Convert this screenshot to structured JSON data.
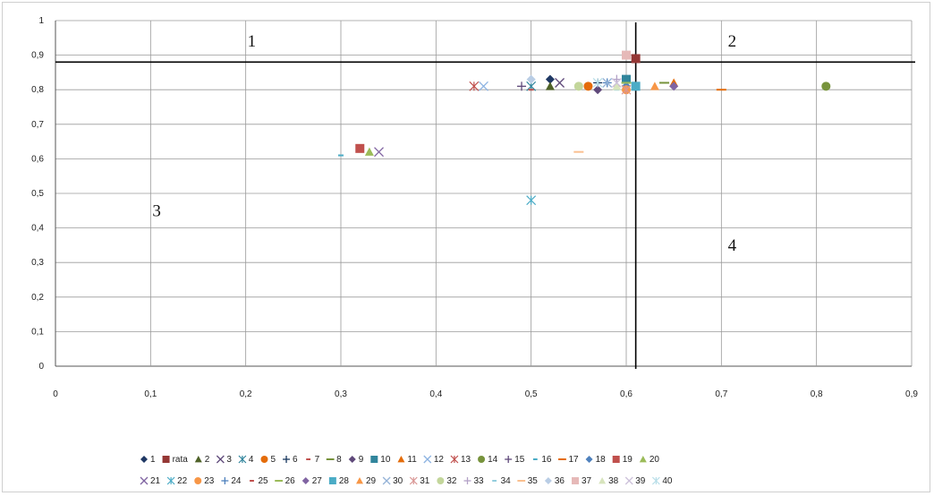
{
  "chart_data": {
    "type": "scatter",
    "title": "",
    "xlabel": "",
    "ylabel": "",
    "xlim": [
      0,
      0.9
    ],
    "ylim": [
      0,
      1
    ],
    "grid": true,
    "legend_position": "bottom",
    "x_ticks": [
      "0",
      "0,1",
      "0,2",
      "0,3",
      "0,4",
      "0,5",
      "0,6",
      "0,7",
      "0,8",
      "0,9"
    ],
    "y_ticks": [
      "0",
      "0,1",
      "0,2",
      "0,3",
      "0,4",
      "0,5",
      "0,6",
      "0,7",
      "0,8",
      "0,9",
      "1"
    ],
    "reference_lines": {
      "x": 0.61,
      "y": 0.88
    },
    "quadrant_labels": [
      {
        "text": "1",
        "x": 0.2,
        "y": 0.94
      },
      {
        "text": "2",
        "x": 0.705,
        "y": 0.94
      },
      {
        "text": "3",
        "x": 0.1,
        "y": 0.45
      },
      {
        "text": "4",
        "x": 0.705,
        "y": 0.35
      }
    ],
    "series": [
      {
        "name": "1",
        "marker": "diamond",
        "color": "#1f3864",
        "x": 0.52,
        "y": 0.83
      },
      {
        "name": "rata",
        "marker": "square",
        "color": "#953735",
        "x": 0.61,
        "y": 0.89
      },
      {
        "name": "2",
        "marker": "triangle",
        "color": "#4f6228",
        "x": 0.52,
        "y": 0.81
      },
      {
        "name": "3",
        "marker": "x",
        "color": "#5f497a",
        "x": 0.53,
        "y": 0.82
      },
      {
        "name": "4",
        "marker": "star",
        "color": "#31859c",
        "x": 0.5,
        "y": 0.81
      },
      {
        "name": "5",
        "marker": "circle",
        "color": "#e46c0a",
        "x": 0.56,
        "y": 0.81
      },
      {
        "name": "6",
        "marker": "plus",
        "color": "#17375e",
        "x": 0.57,
        "y": 0.82
      },
      {
        "name": "7",
        "marker": "dash",
        "color": "#c0504d",
        "x": 0.5,
        "y": 0.8
      },
      {
        "name": "8",
        "marker": "longdash",
        "color": "#77933c",
        "x": 0.64,
        "y": 0.82
      },
      {
        "name": "9",
        "marker": "diamond",
        "color": "#5f497a",
        "x": 0.57,
        "y": 0.8
      },
      {
        "name": "10",
        "marker": "square",
        "color": "#31859c",
        "x": 0.6,
        "y": 0.83
      },
      {
        "name": "11",
        "marker": "triangle",
        "color": "#e46c0a",
        "x": 0.65,
        "y": 0.82
      },
      {
        "name": "12",
        "marker": "x",
        "color": "#8db3e2",
        "x": 0.45,
        "y": 0.81
      },
      {
        "name": "13",
        "marker": "star",
        "color": "#c0504d",
        "x": 0.44,
        "y": 0.81
      },
      {
        "name": "14",
        "marker": "circle",
        "color": "#77933c",
        "x": 0.81,
        "y": 0.81
      },
      {
        "name": "15",
        "marker": "plus",
        "color": "#5f497a",
        "x": 0.49,
        "y": 0.81
      },
      {
        "name": "16",
        "marker": "dash",
        "color": "#4bacc6",
        "x": 0.3,
        "y": 0.61
      },
      {
        "name": "17",
        "marker": "longdash",
        "color": "#e46c0a",
        "x": 0.7,
        "y": 0.8
      },
      {
        "name": "18",
        "marker": "diamond",
        "color": "#4f81bd",
        "x": 0.6,
        "y": 0.81
      },
      {
        "name": "19",
        "marker": "square",
        "color": "#c0504d",
        "x": 0.32,
        "y": 0.63
      },
      {
        "name": "20",
        "marker": "triangle",
        "color": "#9bbb59",
        "x": 0.33,
        "y": 0.62
      },
      {
        "name": "21",
        "marker": "x",
        "color": "#8064a2",
        "x": 0.34,
        "y": 0.62
      },
      {
        "name": "22",
        "marker": "star",
        "color": "#4bacc6",
        "x": 0.5,
        "y": 0.48
      },
      {
        "name": "23",
        "marker": "circle",
        "color": "#f79646",
        "x": 0.6,
        "y": 0.8
      },
      {
        "name": "24",
        "marker": "plus",
        "color": "#4f81bd",
        "x": 0.58,
        "y": 0.82
      },
      {
        "name": "25",
        "marker": "dash",
        "color": "#c0504d",
        "x": 0.59,
        "y": 0.81
      },
      {
        "name": "26",
        "marker": "longdash",
        "color": "#9bbb59",
        "x": 0.6,
        "y": 0.82
      },
      {
        "name": "27",
        "marker": "diamond",
        "color": "#8064a2",
        "x": 0.65,
        "y": 0.81
      },
      {
        "name": "28",
        "marker": "square",
        "color": "#4bacc6",
        "x": 0.61,
        "y": 0.81
      },
      {
        "name": "29",
        "marker": "triangle",
        "color": "#f79646",
        "x": 0.63,
        "y": 0.81
      },
      {
        "name": "30",
        "marker": "x",
        "color": "#95b3d7",
        "x": 0.58,
        "y": 0.82
      },
      {
        "name": "31",
        "marker": "star",
        "color": "#d99694",
        "x": 0.6,
        "y": 0.8
      },
      {
        "name": "32",
        "marker": "circle",
        "color": "#c3d69b",
        "x": 0.55,
        "y": 0.81
      },
      {
        "name": "33",
        "marker": "plus",
        "color": "#b3a2c7",
        "x": 0.59,
        "y": 0.83
      },
      {
        "name": "34",
        "marker": "dash",
        "color": "#93cddd",
        "x": 0.59,
        "y": 0.8
      },
      {
        "name": "35",
        "marker": "longdash",
        "color": "#fac090",
        "x": 0.55,
        "y": 0.62
      },
      {
        "name": "36",
        "marker": "diamond",
        "color": "#b9cde5",
        "x": 0.5,
        "y": 0.83
      },
      {
        "name": "37",
        "marker": "square",
        "color": "#e6b9b8",
        "x": 0.6,
        "y": 0.9
      },
      {
        "name": "38",
        "marker": "triangle",
        "color": "#d7e4bd",
        "x": 0.59,
        "y": 0.81
      },
      {
        "name": "39",
        "marker": "x",
        "color": "#ccc1da",
        "x": 0.59,
        "y": 0.82
      },
      {
        "name": "40",
        "marker": "star",
        "color": "#b7dee8",
        "x": 0.57,
        "y": 0.82
      }
    ]
  }
}
